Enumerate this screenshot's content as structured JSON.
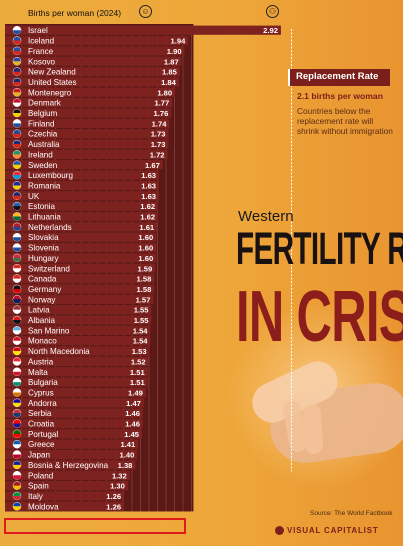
{
  "header": {
    "label": "Births per woman (2024)"
  },
  "replacement": {
    "title": "Replacement Rate",
    "subtitle": "2.1 births per woman",
    "description": "Countries below the replacement rate will shrink without immigration"
  },
  "title": {
    "line1": "Western",
    "line2": "FERTILITY RATES",
    "line3": "IN CRISIS"
  },
  "footer": {
    "source": "Source: The World Factbook",
    "brand": "VISUAL CAPITALIST"
  },
  "colors": {
    "background": "#eea73a",
    "bar": "#7e2220",
    "accent": "#7a1f1b",
    "highlight": "#e01b1b"
  },
  "chart_data": {
    "type": "bar",
    "orientation": "horizontal",
    "highlighted_category": "Moldova",
    "categories": [
      "Israel",
      "Iceland",
      "France",
      "Kosovo",
      "New Zealand",
      "United States",
      "Montenegro",
      "Denmark",
      "Belgium",
      "Finland",
      "Czechia",
      "Australia",
      "Ireland",
      "Sweden",
      "Luxembourg",
      "Romania",
      "UK",
      "Estonia",
      "Lithuania",
      "Netherlands",
      "Slovakia",
      "Slovenia",
      "Hungary",
      "Switzerland",
      "Canada",
      "Germany",
      "Norway",
      "Latvia",
      "Albania",
      "San Marino",
      "Monaco",
      "North Macedonia",
      "Austria",
      "Malta",
      "Bulgaria",
      "Cyprus",
      "Andorra",
      "Serbia",
      "Croatia",
      "Portugal",
      "Greece",
      "Japan",
      "Bosnia & Herzegovina",
      "Poland",
      "Spain",
      "Italy",
      "Moldova"
    ],
    "values": [
      2.92,
      1.94,
      1.9,
      1.87,
      1.85,
      1.84,
      1.8,
      1.77,
      1.76,
      1.74,
      1.73,
      1.73,
      1.72,
      1.67,
      1.63,
      1.63,
      1.63,
      1.62,
      1.62,
      1.61,
      1.6,
      1.6,
      1.6,
      1.59,
      1.58,
      1.58,
      1.57,
      1.55,
      1.55,
      1.54,
      1.54,
      1.53,
      1.52,
      1.51,
      1.51,
      1.49,
      1.47,
      1.46,
      1.46,
      1.45,
      1.41,
      1.4,
      1.38,
      1.32,
      1.3,
      1.26,
      1.26
    ],
    "value_labels": [
      "2.92",
      "1.94",
      "1.90",
      "1.87",
      "1.85",
      "1.84",
      "1.80",
      "1.77",
      "1.76",
      "1.74",
      "1.73",
      "1.73",
      "1.72",
      "1.67",
      "1.63",
      "1.63",
      "1.63",
      "1.62",
      "1.62",
      "1.61",
      "1.60",
      "1.60",
      "1.60",
      "1.59",
      "1.58",
      "1.58",
      "1.57",
      "1.55",
      "1.55",
      "1.54",
      "1.54",
      "1.53",
      "1.52",
      "1.51",
      "1.51",
      "1.49",
      "1.47",
      "1.46",
      "1.46",
      "1.45",
      "1.41",
      "1.40",
      "1.38",
      "1.32",
      "1.30",
      "1.26",
      "1.26"
    ],
    "flag_colors": [
      [
        "#ffffff",
        "#1f4fa8"
      ],
      [
        "#1f4fa8",
        "#d62718"
      ],
      [
        "#1f4fa8",
        "#d62718"
      ],
      [
        "#2449a6",
        "#e3b32a"
      ],
      [
        "#1a2a6e",
        "#d62718"
      ],
      [
        "#1a2a6e",
        "#d62718"
      ],
      [
        "#c81c1c",
        "#e3b32a"
      ],
      [
        "#c8102e",
        "#ffffff"
      ],
      [
        "#111111",
        "#f5d000"
      ],
      [
        "#ffffff",
        "#1a4fa0"
      ],
      [
        "#1a4fa0",
        "#d62718"
      ],
      [
        "#1a2a6e",
        "#d62718"
      ],
      [
        "#169b62",
        "#ff883e"
      ],
      [
        "#1f5fa8",
        "#f5d000"
      ],
      [
        "#ed2939",
        "#00a1de"
      ],
      [
        "#1a2a9e",
        "#f5d000"
      ],
      [
        "#1a2a6e",
        "#d62718"
      ],
      [
        "#1f5fa8",
        "#111111"
      ],
      [
        "#fdb913",
        "#006a44"
      ],
      [
        "#ae1c28",
        "#21468b"
      ],
      [
        "#ffffff",
        "#1a4fa0"
      ],
      [
        "#ffffff",
        "#1a4fa0"
      ],
      [
        "#cd2a3e",
        "#436f4d"
      ],
      [
        "#d52b1e",
        "#ffffff"
      ],
      [
        "#d52b1e",
        "#ffffff"
      ],
      [
        "#111111",
        "#dd0000"
      ],
      [
        "#ba0c2f",
        "#00205b"
      ],
      [
        "#9e3039",
        "#ffffff"
      ],
      [
        "#d61c1c",
        "#111111"
      ],
      [
        "#5eb6e4",
        "#ffffff"
      ],
      [
        "#ce1126",
        "#ffffff"
      ],
      [
        "#d20000",
        "#ffe600"
      ],
      [
        "#ed2939",
        "#ffffff"
      ],
      [
        "#ffffff",
        "#cf142b"
      ],
      [
        "#ffffff",
        "#00966e"
      ],
      [
        "#ffffff",
        "#d57800"
      ],
      [
        "#10069f",
        "#fedd00"
      ],
      [
        "#c6363c",
        "#0c4076"
      ],
      [
        "#ff0000",
        "#171796"
      ],
      [
        "#006600",
        "#ff0000"
      ],
      [
        "#0d5eaf",
        "#ffffff"
      ],
      [
        "#ffffff",
        "#bc002d"
      ],
      [
        "#002395",
        "#fecb00"
      ],
      [
        "#ffffff",
        "#dc143c"
      ],
      [
        "#aa151b",
        "#f1bf00"
      ],
      [
        "#009246",
        "#ce2b37"
      ],
      [
        "#0046ae",
        "#ffd200"
      ]
    ],
    "replacement_rate": 2.1,
    "xlim": [
      0,
      3.2
    ]
  }
}
